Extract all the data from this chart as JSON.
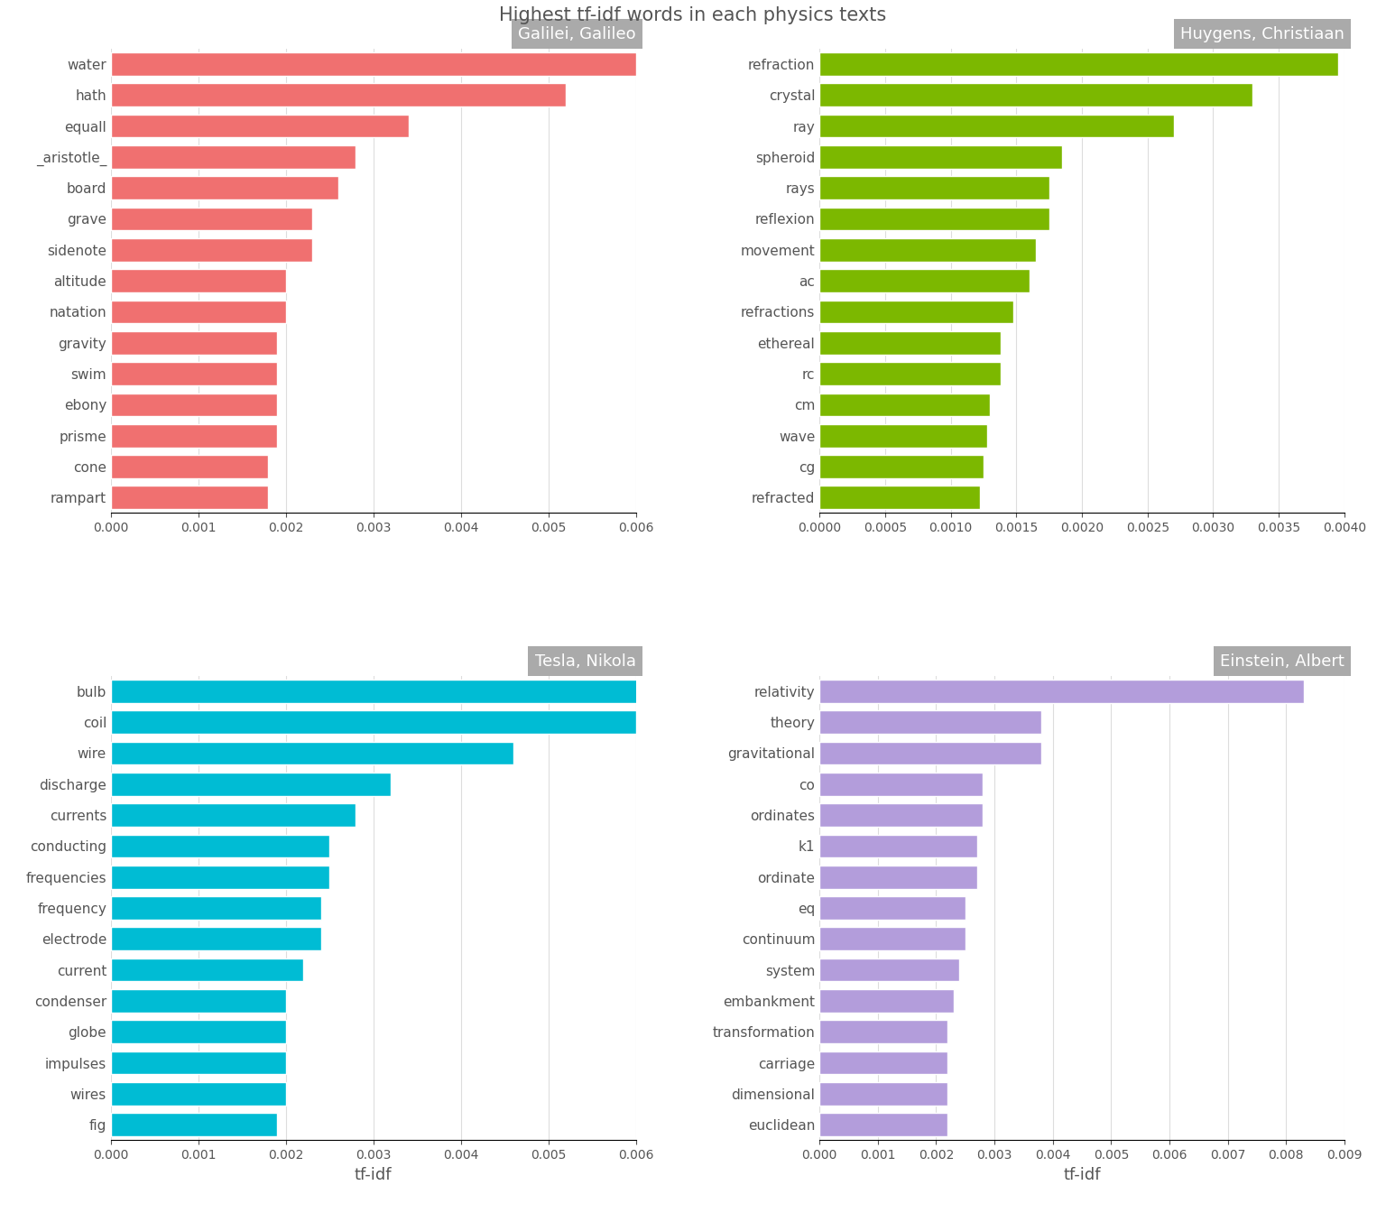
{
  "title": "Highest tf-idf words in each physics texts",
  "subplots": [
    {
      "title": "Galilei, Galileo",
      "color": "#F07070",
      "words": [
        "water",
        "hath",
        "equall",
        "_aristotle_",
        "board",
        "grave",
        "sidenote",
        "altitude",
        "natation",
        "gravity",
        "swim",
        "ebony",
        "prisme",
        "cone",
        "rampart"
      ],
      "values": [
        0.006,
        0.0052,
        0.0034,
        0.0028,
        0.0026,
        0.0023,
        0.0023,
        0.002,
        0.002,
        0.0019,
        0.0019,
        0.0019,
        0.0019,
        0.0018,
        0.0018
      ],
      "xlim": [
        0,
        0.006
      ]
    },
    {
      "title": "Huygens, Christiaan",
      "color": "#7CB800",
      "words": [
        "refraction",
        "crystal",
        "ray",
        "spheroid",
        "rays",
        "reflexion",
        "movement",
        "ac",
        "refractions",
        "ethereal",
        "rc",
        "cm",
        "wave",
        "cg",
        "refracted"
      ],
      "values": [
        0.00395,
        0.0033,
        0.0027,
        0.00185,
        0.00175,
        0.00175,
        0.00165,
        0.0016,
        0.00148,
        0.00138,
        0.00138,
        0.0013,
        0.00128,
        0.00125,
        0.00122
      ],
      "xlim": [
        0,
        0.004
      ]
    },
    {
      "title": "Tesla, Nikola",
      "color": "#00BCD4",
      "words": [
        "bulb",
        "coil",
        "wire",
        "discharge",
        "currents",
        "conducting",
        "frequencies",
        "frequency",
        "electrode",
        "current",
        "condenser",
        "globe",
        "impulses",
        "wires",
        "fig"
      ],
      "values": [
        0.0062,
        0.006,
        0.0046,
        0.0032,
        0.0028,
        0.0025,
        0.0025,
        0.0024,
        0.0024,
        0.0022,
        0.002,
        0.002,
        0.002,
        0.002,
        0.0019
      ],
      "xlim": [
        0,
        0.006
      ]
    },
    {
      "title": "Einstein, Albert",
      "color": "#B39DDB",
      "words": [
        "relativity",
        "theory",
        "gravitational",
        "co",
        "ordinates",
        "k1",
        "ordinate",
        "eq",
        "continuum",
        "system",
        "embankment",
        "transformation",
        "carriage",
        "dimensional",
        "euclidean"
      ],
      "values": [
        0.0083,
        0.0038,
        0.0038,
        0.0028,
        0.0028,
        0.0027,
        0.0027,
        0.0025,
        0.0025,
        0.0024,
        0.0023,
        0.0022,
        0.0022,
        0.0022,
        0.0022
      ],
      "xlim": [
        0,
        0.009
      ]
    }
  ],
  "xlabel": "tf-idf",
  "background_color": "#ffffff",
  "title_bg_color": "#AAAAAA",
  "title_text_color": "#ffffff",
  "label_color": "#555555",
  "grid_color": "#dddddd"
}
